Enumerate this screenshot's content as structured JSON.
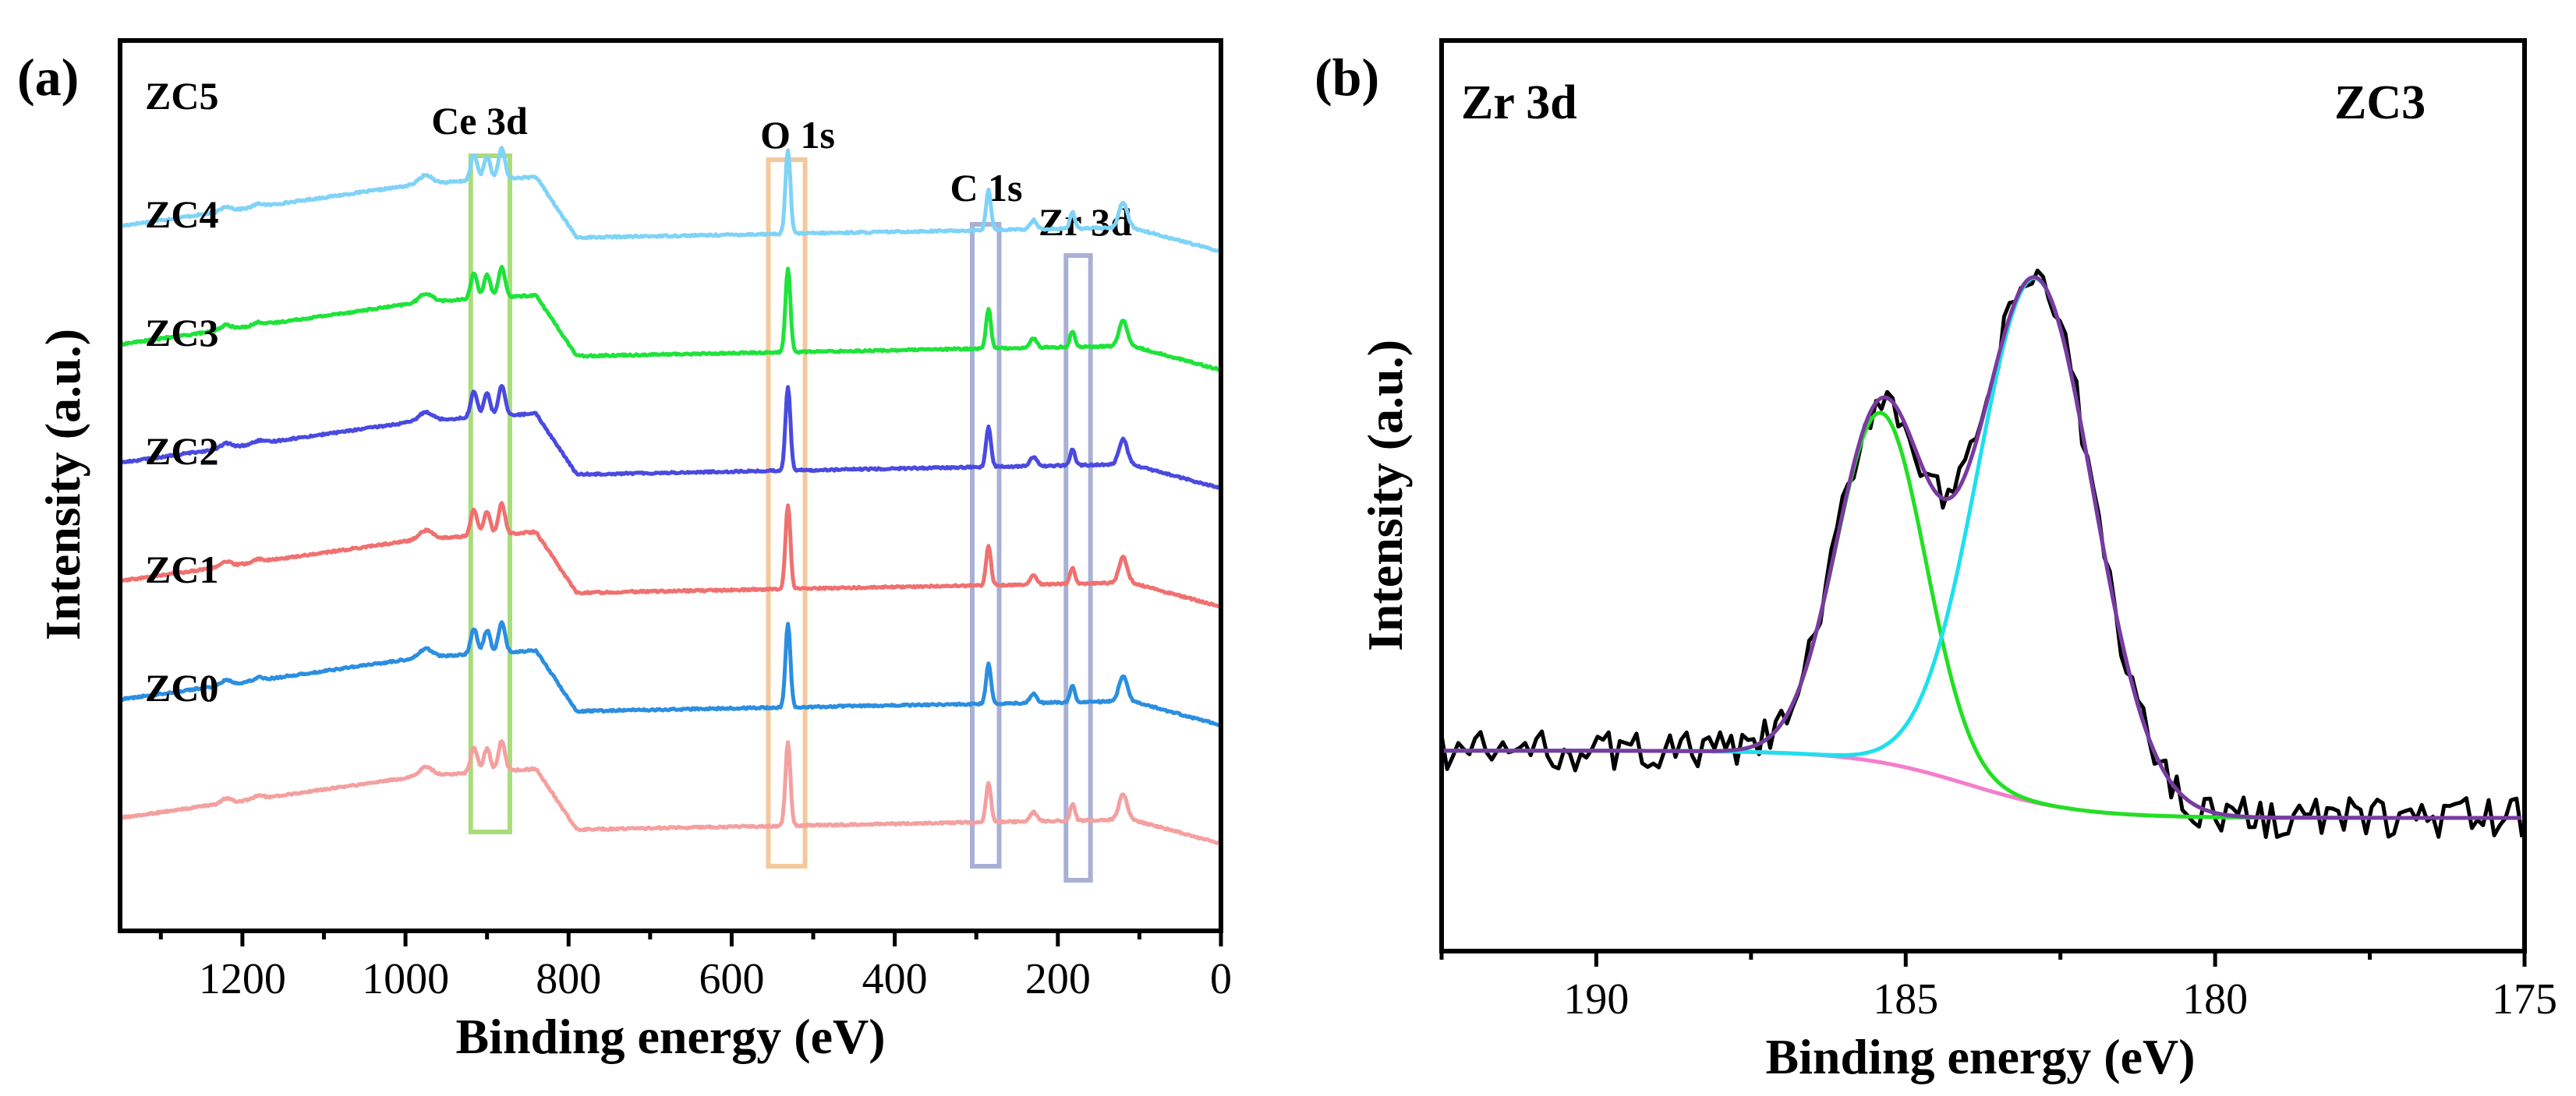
{
  "chart_data": [
    {
      "panel": "(a)",
      "type": "line",
      "xlabel": "Binding energy (eV)",
      "ylabel": "Intensity (a.u.)",
      "xlim": [
        1350,
        0
      ],
      "x_reversed": true,
      "xticks": [
        1200,
        1000,
        800,
        600,
        400,
        200,
        0
      ],
      "yticks_shown": false,
      "grid": false,
      "series": [
        {
          "name": "ZC5",
          "color": "#7fd3f7",
          "offset": 5
        },
        {
          "name": "ZC4",
          "color": "#1ee33a",
          "offset": 4
        },
        {
          "name": "ZC3",
          "color": "#4a4ae0",
          "offset": 3
        },
        {
          "name": "ZC2",
          "color": "#f07070",
          "offset": 2
        },
        {
          "name": "ZC1",
          "color": "#2b8ee0",
          "offset": 1
        },
        {
          "name": "ZC0",
          "color": "#f4a0a0",
          "offset": 0
        }
      ],
      "peaks": [
        {
          "x": 1220,
          "h": 0.1,
          "w": 6
        },
        {
          "x": 1180,
          "h": 0.06,
          "w": 6
        },
        {
          "x": 975,
          "h": 0.18,
          "w": 8
        },
        {
          "x": 916,
          "h": 0.55,
          "w": 4
        },
        {
          "x": 900,
          "h": 0.5,
          "w": 4
        },
        {
          "x": 882,
          "h": 0.65,
          "w": 4
        },
        {
          "x": 531,
          "h": 1.8,
          "w": 3
        },
        {
          "x": 285,
          "h": 0.85,
          "w": 3
        },
        {
          "x": 230,
          "h": 0.2,
          "w": 4
        },
        {
          "x": 182,
          "h": 0.35,
          "w": 3
        },
        {
          "x": 120,
          "h": 0.55,
          "w": 5
        }
      ],
      "regions": [
        {
          "label": "Ce 3d",
          "x0": 920,
          "x1": 872,
          "color": "#a9dc7a"
        },
        {
          "label": "O 1s",
          "x0": 555,
          "x1": 510,
          "color": "#f3c99c"
        },
        {
          "label": "C 1s",
          "x0": 305,
          "x1": 272,
          "color": "#a9b0d6"
        },
        {
          "label": "Zr 3d",
          "x0": 190,
          "x1": 160,
          "color": "#a9b0d6"
        }
      ]
    },
    {
      "panel": "(b)",
      "type": "line",
      "xlabel": "Binding energy (eV)",
      "ylabel": "Intensity (a.u.)",
      "xlim": [
        192.5,
        175
      ],
      "x_reversed": true,
      "xticks": [
        190,
        185,
        180,
        175
      ],
      "yticks_shown": false,
      "grid": false,
      "ylim": [
        -0.05,
        1.05
      ],
      "corner_left": "Zr 3d",
      "corner_right": "ZC3",
      "fit": {
        "peaks": [
          {
            "center": 185.4,
            "height": 0.52,
            "fwhm": 1.7,
            "color": "#22e022"
          },
          {
            "center": 182.9,
            "height": 0.78,
            "fwhm": 2.2,
            "color": "#1ee0ee"
          }
        ],
        "background": {
          "high_be_level": 0.1,
          "low_be_level": 0.0,
          "midpoint": 184.0,
          "color": "#f57ccc"
        },
        "envelope_color": "#7a3aa0",
        "raw_color": "#000000"
      }
    }
  ]
}
